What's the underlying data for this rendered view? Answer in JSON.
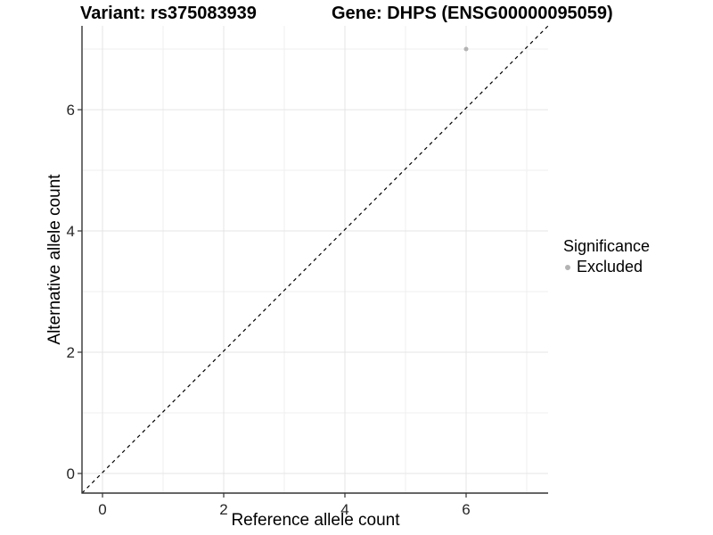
{
  "titles": {
    "variant": "Variant: rs375083939",
    "gene": "Gene: DHPS (ENSG00000095059)"
  },
  "chart_data": {
    "type": "scatter",
    "title": "",
    "xlabel": "Reference allele count",
    "ylabel": "Alternative allele count",
    "xlim": [
      -0.34,
      7.35
    ],
    "ylim": [
      -0.32,
      7.38
    ],
    "x_major_ticks": [
      0,
      2,
      4,
      6
    ],
    "y_major_ticks": [
      0,
      2,
      4,
      6
    ],
    "x_minor_gridlines": [
      1,
      3,
      5,
      7
    ],
    "y_minor_gridlines": [
      1,
      3,
      5,
      7
    ],
    "grid": true,
    "series": [
      {
        "name": "Excluded",
        "points": [
          {
            "x": 6,
            "y": 7
          }
        ],
        "color": "#b3b3b3",
        "point_radius": 2.5
      }
    ],
    "reference_line": {
      "description": "identity line y = x",
      "slope": 1,
      "intercept": 0,
      "style": "dashed",
      "color": "#000000"
    },
    "legend": {
      "title": "Significance",
      "position": "right",
      "items": [
        {
          "label": "Excluded",
          "color": "#b3b3b3"
        }
      ]
    }
  },
  "colors": {
    "background": "#ffffff",
    "grid_major": "#e4e4e4",
    "grid_minor": "#efefef",
    "axis_line": "#333333",
    "tick_mark": "#333333",
    "tick_label": "#262626",
    "text": "#000000",
    "excluded_point": "#b3b3b3"
  }
}
